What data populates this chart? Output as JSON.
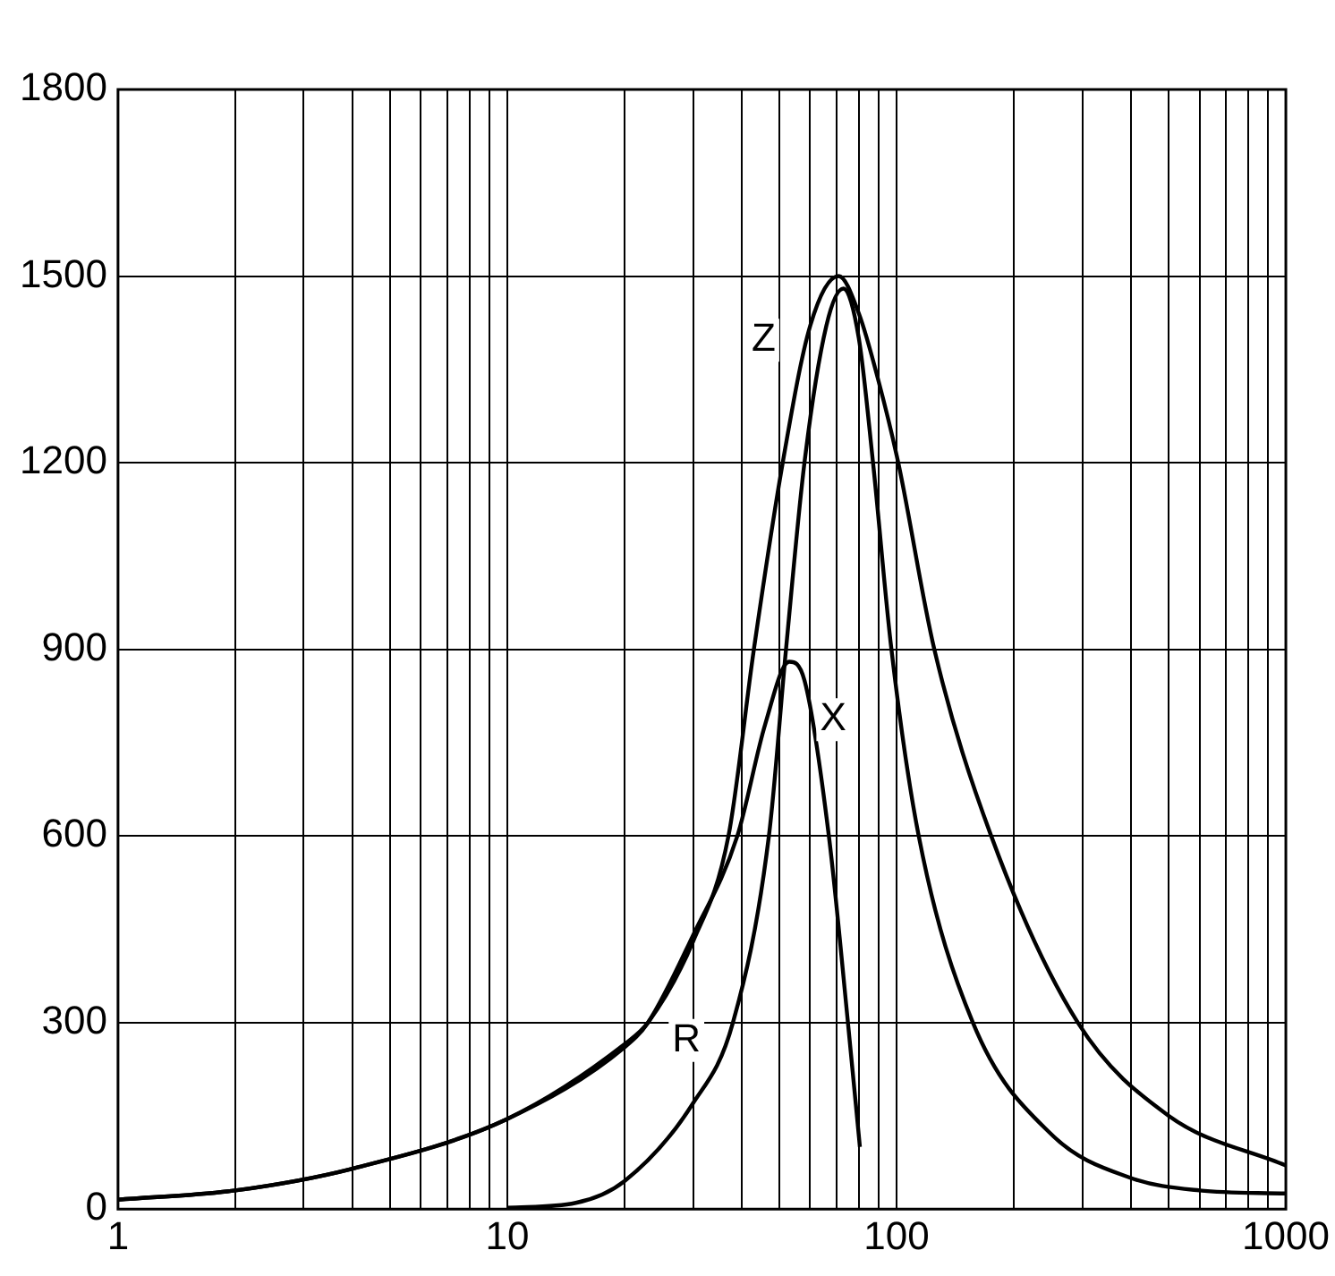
{
  "chart_data": {
    "type": "line",
    "log": "x",
    "grid": true,
    "legend": false,
    "marker": "none",
    "line_style": "solid",
    "xlim": [
      1,
      1000
    ],
    "ylim": [
      0,
      1800
    ],
    "xticks": [
      1,
      {
        "value": 2,
        "label": null
      },
      {
        "value": 3,
        "label": null
      },
      {
        "value": 4,
        "label": null
      },
      {
        "value": 5,
        "label": null
      },
      {
        "value": 6,
        "label": null
      },
      {
        "value": 7,
        "label": null
      },
      {
        "value": 8,
        "label": null
      },
      {
        "value": 9,
        "label": null
      },
      10,
      {
        "value": 20,
        "label": null
      },
      {
        "value": 30,
        "label": null
      },
      {
        "value": 40,
        "label": null
      },
      {
        "value": 50,
        "label": null
      },
      {
        "value": 60,
        "label": null
      },
      {
        "value": 70,
        "label": null
      },
      {
        "value": 80,
        "label": null
      },
      {
        "value": 90,
        "label": null
      },
      100,
      {
        "value": 200,
        "label": null
      },
      {
        "value": 300,
        "label": null
      },
      {
        "value": 400,
        "label": null
      },
      {
        "value": 500,
        "label": null
      },
      {
        "value": 600,
        "label": null
      },
      {
        "value": 700,
        "label": null
      },
      {
        "value": 800,
        "label": null
      },
      {
        "value": 900,
        "label": null
      },
      1000
    ],
    "yticks": [
      0,
      300,
      600,
      900,
      1200,
      1500,
      1800
    ],
    "series": [
      {
        "name": "Z",
        "color": "#000000",
        "x": [
          1,
          2,
          4,
          10,
          20,
          23,
          30,
          37,
          43,
          51,
          60,
          71,
          80,
          90,
          101,
          125,
          175,
          292,
          500,
          1000
        ],
        "values": [
          15,
          30,
          65,
          145,
          265,
          300,
          430,
          600,
          900,
          1200,
          1420,
          1500,
          1440,
          1330,
          1200,
          900,
          600,
          300,
          150,
          70
        ]
      },
      {
        "name": "X",
        "color": "#000000",
        "x": [
          1,
          2,
          4,
          10,
          20,
          23,
          30,
          39,
          46,
          53,
          58,
          67,
          75,
          80.5
        ],
        "values": [
          15,
          30,
          65,
          145,
          260,
          300,
          440,
          600,
          780,
          880,
          850,
          600,
          300,
          100
        ]
      },
      {
        "name": "R",
        "color": "#000000",
        "x": [
          10,
          15,
          20,
          30,
          38,
          47,
          52,
          58,
          66,
          73,
          80,
          87,
          97,
          114,
          157,
          250,
          400,
          600,
          1000
        ],
        "values": [
          2,
          10,
          45,
          170,
          300,
          600,
          900,
          1200,
          1420,
          1480,
          1400,
          1200,
          900,
          600,
          300,
          120,
          50,
          30,
          25
        ]
      }
    ]
  }
}
